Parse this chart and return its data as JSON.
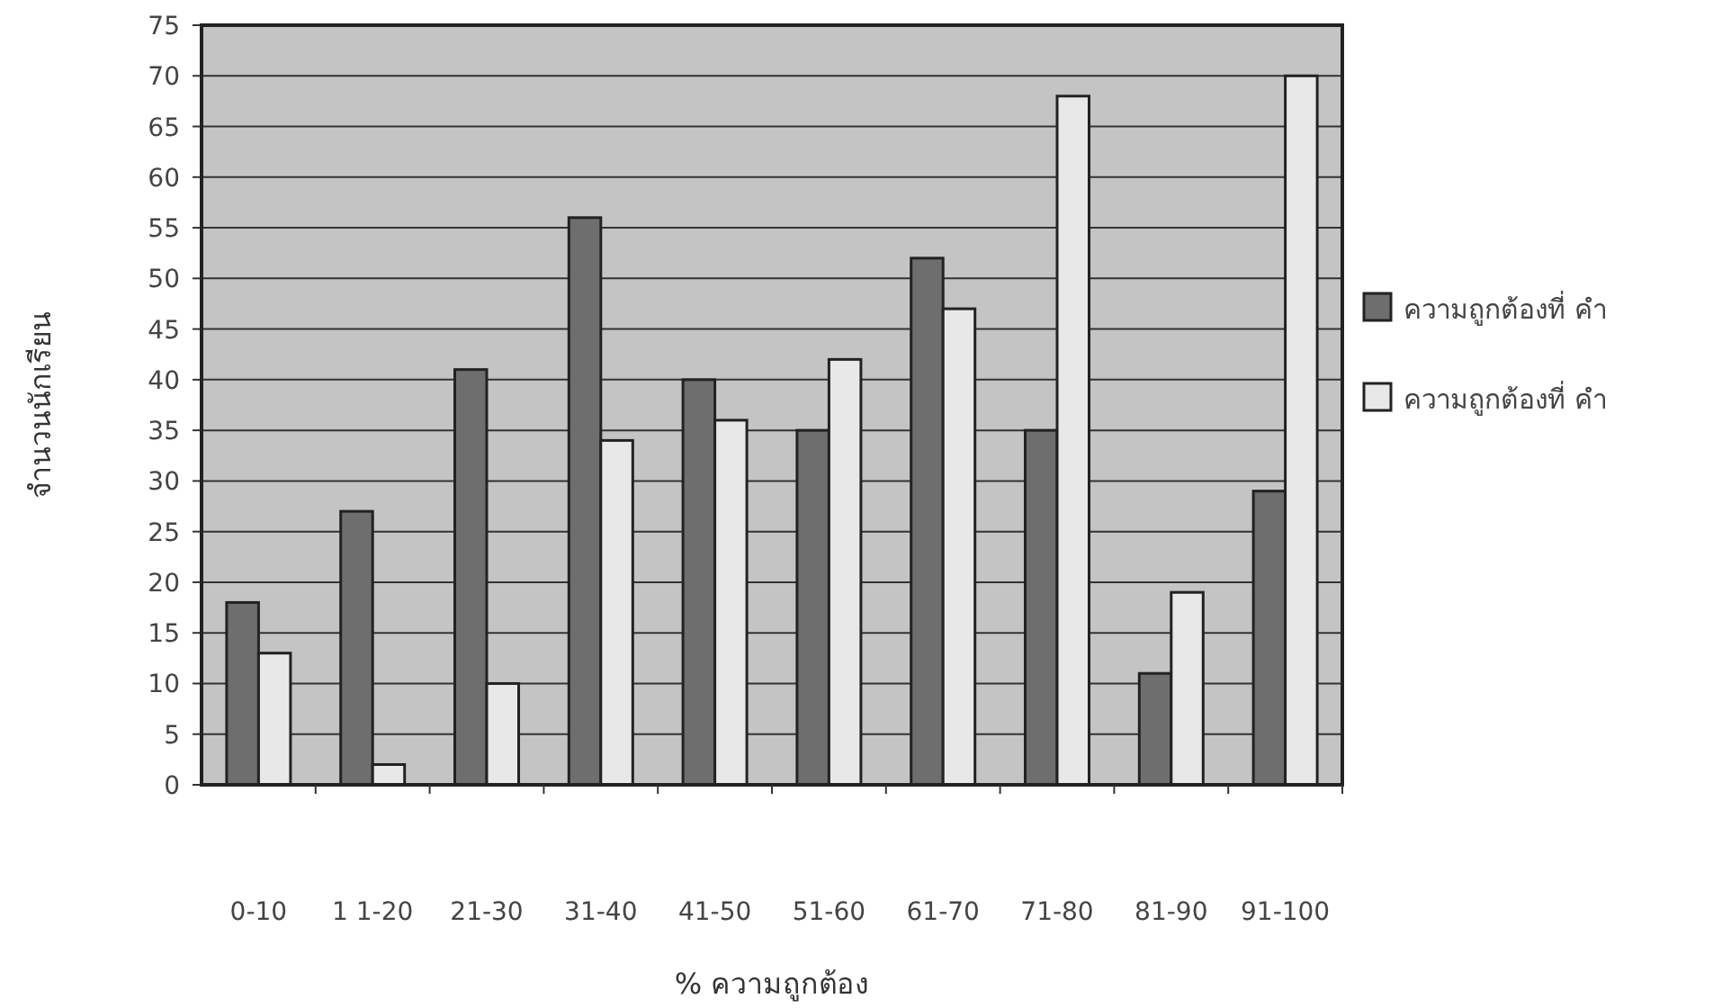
{
  "chart_data": {
    "type": "bar",
    "xlabel": "% ความถูกต้อง",
    "ylabel": "จำนวนนักเรียน",
    "categories": [
      "0-10",
      "1 1-20",
      "21-30",
      "31-40",
      "41-50",
      "51-60",
      "61-70",
      "71-80",
      "81-90",
      "91-100"
    ],
    "series": [
      {
        "name": "ความถูกต้องที่ คำ",
        "color": "#6e6e6e",
        "values": [
          18,
          27,
          41,
          56,
          40,
          35,
          52,
          35,
          11,
          29
        ]
      },
      {
        "name": "ความถูกต้องที่ คำ",
        "color": "#e8e8e8",
        "values": [
          13,
          2,
          10,
          34,
          36,
          42,
          47,
          68,
          19,
          70
        ]
      }
    ],
    "ylim": [
      0,
      75
    ],
    "yticks": [
      0,
      5,
      10,
      15,
      20,
      25,
      30,
      35,
      40,
      45,
      50,
      55,
      60,
      65,
      70,
      75
    ],
    "grid": "y",
    "legend": "right"
  }
}
